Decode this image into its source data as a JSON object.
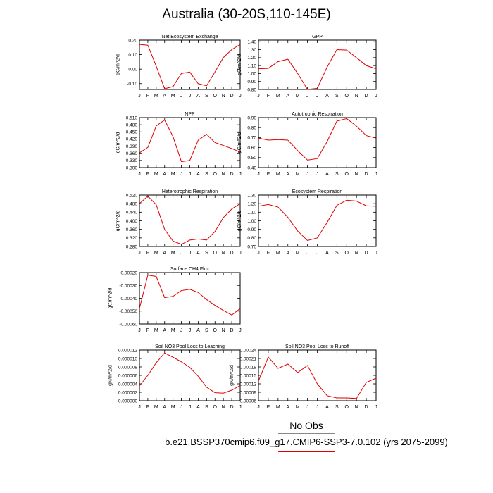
{
  "title": "Australia (30-20S,110-145E)",
  "legend": {
    "obs_label": "No Obs",
    "case_label": "b.e21.BSSP370cmip6.f09_g17.CMIP6-SSP3-7.0.102 (yrs 2075-2099)",
    "case_color": "#e00000",
    "obs_color": "#888888"
  },
  "chart_data": [
    {
      "type": "line",
      "title": "Net Ecosystem Exchange",
      "ylabel": "gC/m^2/d",
      "xticks": [
        "J",
        "F",
        "M",
        "A",
        "M",
        "J",
        "J",
        "A",
        "S",
        "O",
        "N",
        "D",
        "J"
      ],
      "yticks": [
        "0.20",
        "0.10",
        "0.00",
        "-0.10"
      ],
      "ylim": [
        -0.14,
        0.2
      ],
      "y": [
        0.17,
        0.165,
        0.02,
        -0.135,
        -0.12,
        -0.03,
        -0.02,
        -0.1,
        -0.115,
        -0.02,
        0.08,
        0.135,
        0.17
      ],
      "color": "#e00000"
    },
    {
      "type": "line",
      "title": "GPP",
      "ylabel": "gC/m^2/d",
      "xticks": [
        "J",
        "F",
        "M",
        "A",
        "M",
        "J",
        "J",
        "A",
        "S",
        "O",
        "N",
        "D",
        "J"
      ],
      "yticks": [
        "1.40",
        "1.30",
        "1.20",
        "1.10",
        "1.00",
        "0.90",
        "0.80"
      ],
      "ylim": [
        0.8,
        1.42
      ],
      "y": [
        1.06,
        1.065,
        1.15,
        1.18,
        1.0,
        0.8,
        0.815,
        1.08,
        1.3,
        1.295,
        1.2,
        1.1,
        1.06
      ],
      "color": "#e00000"
    },
    {
      "type": "line",
      "title": "NPP",
      "ylabel": "gC/m^2/d",
      "xticks": [
        "J",
        "F",
        "M",
        "A",
        "M",
        "J",
        "J",
        "A",
        "S",
        "O",
        "N",
        "D",
        "J"
      ],
      "yticks": [
        "0.510",
        "0.480",
        "0.450",
        "0.420",
        "0.390",
        "0.360",
        "0.330",
        "0.300"
      ],
      "ylim": [
        0.3,
        0.51
      ],
      "y": [
        0.362,
        0.385,
        0.475,
        0.5,
        0.43,
        0.325,
        0.33,
        0.415,
        0.44,
        0.405,
        0.393,
        0.38,
        0.365
      ],
      "color": "#e00000"
    },
    {
      "type": "line",
      "title": "Autotrophic Respiration",
      "ylabel": "gC/m^2/d",
      "xticks": [
        "J",
        "F",
        "M",
        "A",
        "M",
        "J",
        "J",
        "A",
        "S",
        "O",
        "N",
        "D",
        "J"
      ],
      "yticks": [
        "0.90",
        "0.80",
        "0.70",
        "0.60",
        "0.50",
        "0.40"
      ],
      "ylim": [
        0.4,
        0.9
      ],
      "y": [
        0.695,
        0.675,
        0.68,
        0.675,
        0.57,
        0.475,
        0.49,
        0.66,
        0.865,
        0.89,
        0.815,
        0.72,
        0.695
      ],
      "color": "#e00000"
    },
    {
      "type": "line",
      "title": "Heterotrophic Respiration",
      "ylabel": "gC/m^2/d",
      "xticks": [
        "J",
        "F",
        "M",
        "A",
        "M",
        "J",
        "J",
        "A",
        "S",
        "O",
        "N",
        "D",
        "J"
      ],
      "yticks": [
        "0.520",
        "0.480",
        "0.440",
        "0.400",
        "0.360",
        "0.320",
        "0.280"
      ],
      "ylim": [
        0.28,
        0.52
      ],
      "y": [
        0.48,
        0.515,
        0.475,
        0.36,
        0.305,
        0.29,
        0.31,
        0.315,
        0.31,
        0.35,
        0.415,
        0.455,
        0.48
      ],
      "color": "#e00000"
    },
    {
      "type": "line",
      "title": "Ecosystem Respiration",
      "ylabel": "gC/m^2/d",
      "xticks": [
        "J",
        "F",
        "M",
        "A",
        "M",
        "J",
        "J",
        "A",
        "S",
        "O",
        "N",
        "D",
        "J"
      ],
      "yticks": [
        "1.30",
        "1.20",
        "1.10",
        "1.00",
        "0.90",
        "0.80",
        "0.70"
      ],
      "ylim": [
        0.7,
        1.3
      ],
      "y": [
        1.17,
        1.19,
        1.16,
        1.04,
        0.88,
        0.77,
        0.8,
        0.98,
        1.18,
        1.24,
        1.23,
        1.175,
        1.17
      ],
      "color": "#e00000"
    },
    {
      "type": "line",
      "title": "Surface CH4 Flux",
      "ylabel": "gC/m^2/d",
      "xticks": [
        "J",
        "F",
        "M",
        "A",
        "M",
        "J",
        "J",
        "A",
        "S",
        "O",
        "N",
        "D",
        "J"
      ],
      "yticks": [
        "-0.00020",
        "-0.00030",
        "-0.00040",
        "-0.00050",
        "-0.00060"
      ],
      "ylim": [
        -0.0006,
        -0.0002
      ],
      "y": [
        -0.00048,
        -0.00022,
        -0.00023,
        -0.000395,
        -0.000385,
        -0.00034,
        -0.00033,
        -0.000355,
        -0.00041,
        -0.000455,
        -0.000495,
        -0.00053,
        -0.00048
      ],
      "color": "#e00000"
    },
    {
      "type": "line",
      "title": "Soil NO3 Pool Loss to Leaching",
      "ylabel": "gN/m^2/d",
      "xticks": [
        "J",
        "F",
        "M",
        "A",
        "M",
        "J",
        "J",
        "A",
        "S",
        "O",
        "N",
        "D",
        "J"
      ],
      "yticks": [
        "0.000012",
        "0.000010",
        "0.000008",
        "0.000006",
        "0.000004",
        "0.000002",
        "0.000000"
      ],
      "ylim": [
        0,
        1.2e-05
      ],
      "y": [
        3.5e-06,
        6e-06,
        9e-06,
        1.13e-05,
        1.03e-05,
        9.2e-06,
        7.9e-06,
        5.8e-06,
        3.2e-06,
        1.9e-06,
        1.8e-06,
        2.5e-06,
        3.6e-06
      ],
      "color": "#e00000"
    },
    {
      "type": "line",
      "title": "Soil NO3 Pool Loss to Runoff",
      "ylabel": "gN/m^2/d",
      "xticks": [
        "J",
        "F",
        "M",
        "A",
        "M",
        "J",
        "J",
        "A",
        "S",
        "O",
        "N",
        "D",
        "J"
      ],
      "yticks": [
        "0.00024",
        "0.00021",
        "0.00018",
        "0.00015",
        "0.00012",
        "0.00009",
        "0.00006"
      ],
      "ylim": [
        6e-05,
        0.00024
      ],
      "y": [
        0.00013,
        0.000215,
        0.000175,
        0.00019,
        0.00016,
        0.000185,
        0.00012,
        7.8e-05,
        7e-05,
        7e-05,
        6.8e-05,
        0.000125,
        0.00014
      ],
      "color": "#e00000"
    }
  ]
}
